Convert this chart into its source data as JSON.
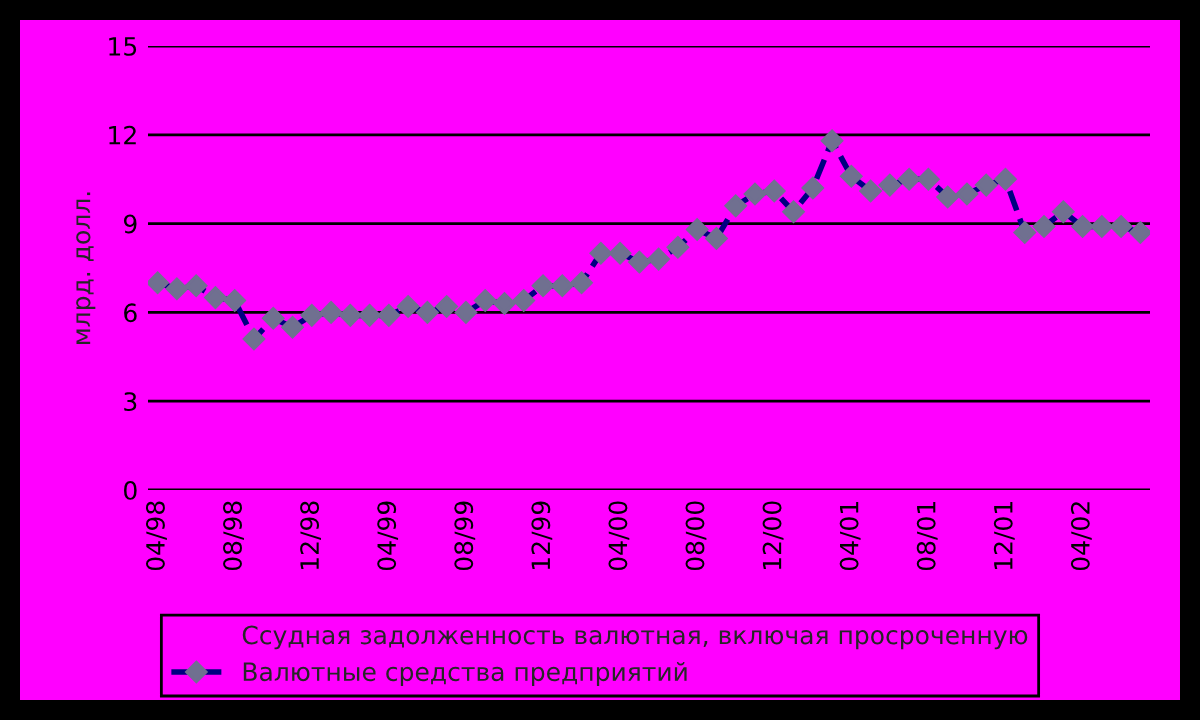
{
  "chart_data": {
    "type": "line",
    "ylabel": "млрд. долл.",
    "categories": [
      "04/98",
      null,
      null,
      null,
      "08/98",
      null,
      null,
      null,
      "12/98",
      null,
      null,
      null,
      "04/99",
      null,
      null,
      null,
      "08/99",
      null,
      null,
      null,
      "12/99",
      null,
      null,
      null,
      "04/00",
      null,
      null,
      null,
      "08/00",
      null,
      null,
      null,
      "12/00",
      null,
      null,
      null,
      "04/01",
      null,
      null,
      null,
      "08/01",
      null,
      null,
      null,
      "12/01",
      null,
      null,
      null,
      "04/02",
      null,
      null,
      null
    ],
    "series": [
      {
        "name": "Ссудная задолженность валютная, включая просроченную",
        "marker": "none",
        "values": [
          null,
          null,
          null,
          null,
          null,
          null,
          null,
          null,
          null,
          null,
          null,
          null,
          null,
          null,
          null,
          null,
          null,
          null,
          null,
          null,
          null,
          null,
          null,
          null,
          null,
          null,
          null,
          null,
          null,
          null,
          null,
          null,
          null,
          null,
          null,
          null,
          null,
          null,
          null,
          null,
          null,
          null,
          null,
          null,
          null,
          null,
          null,
          null,
          null,
          null,
          null,
          null
        ]
      },
      {
        "name": "Валютные средства предприятий",
        "color": "#000080",
        "values": [
          7.0,
          6.8,
          6.9,
          6.5,
          6.4,
          5.1,
          5.8,
          5.5,
          5.9,
          6.0,
          5.9,
          5.9,
          5.9,
          6.2,
          6.0,
          6.2,
          6.0,
          6.4,
          6.3,
          6.4,
          6.9,
          6.9,
          7.0,
          8.0,
          8.0,
          7.7,
          7.8,
          8.2,
          8.8,
          8.5,
          9.6,
          10.0,
          10.1,
          9.4,
          10.2,
          11.8,
          10.6,
          10.1,
          10.3,
          10.5,
          10.5,
          9.9,
          10.0,
          10.3,
          10.5,
          8.7,
          8.9,
          9.4,
          8.9,
          8.9,
          8.9,
          8.7
        ]
      }
    ],
    "ylim": [
      0,
      15
    ],
    "yticks": [
      0,
      3,
      6,
      9,
      12,
      15
    ],
    "grid": "y",
    "legend": "bottom",
    "marker": "diamond",
    "line_style": "dashed"
  }
}
